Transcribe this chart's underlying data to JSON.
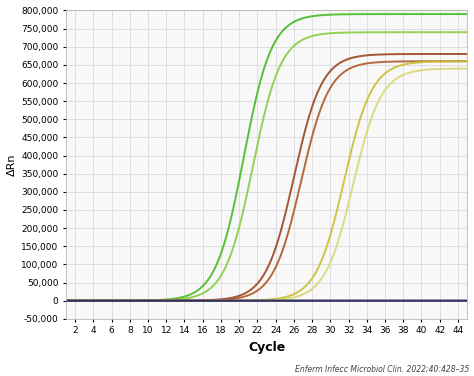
{
  "title": "",
  "xlabel": "Cycle",
  "ylabel": "ΔRn",
  "xlim": [
    1,
    45
  ],
  "ylim": [
    -50000,
    800000
  ],
  "xticks": [
    2,
    4,
    6,
    8,
    10,
    12,
    14,
    16,
    18,
    20,
    22,
    24,
    26,
    28,
    30,
    32,
    34,
    36,
    38,
    40,
    42,
    44
  ],
  "yticks": [
    -50000,
    0,
    50000,
    100000,
    150000,
    200000,
    250000,
    300000,
    350000,
    400000,
    450000,
    500000,
    550000,
    600000,
    650000,
    700000,
    750000,
    800000
  ],
  "background_color": "#ffffff",
  "plot_bg_color": "#f8f8f8",
  "grid_color": "#cccccc",
  "citation": "Enferm Infecc Microbiol Clin. 2022;40:428–35",
  "curves": [
    {
      "color": "#44bb22",
      "midpoint": 20.5,
      "k": 0.65,
      "plateau": 790000
    },
    {
      "color": "#88cc44",
      "midpoint": 21.5,
      "k": 0.65,
      "plateau": 740000
    },
    {
      "color": "#9b4420",
      "midpoint": 26.0,
      "k": 0.65,
      "plateau": 680000
    },
    {
      "color": "#b05828",
      "midpoint": 26.8,
      "k": 0.65,
      "plateau": 660000
    },
    {
      "color": "#c8c030",
      "midpoint": 31.5,
      "k": 0.65,
      "plateau": 660000
    },
    {
      "color": "#d8d878",
      "midpoint": 32.5,
      "k": 0.65,
      "plateau": 640000
    },
    {
      "color": "#222255",
      "midpoint": 90.0,
      "k": 0.55,
      "plateau": 5000
    },
    {
      "color": "#333366",
      "midpoint": 92.0,
      "k": 0.55,
      "plateau": 4000
    }
  ]
}
